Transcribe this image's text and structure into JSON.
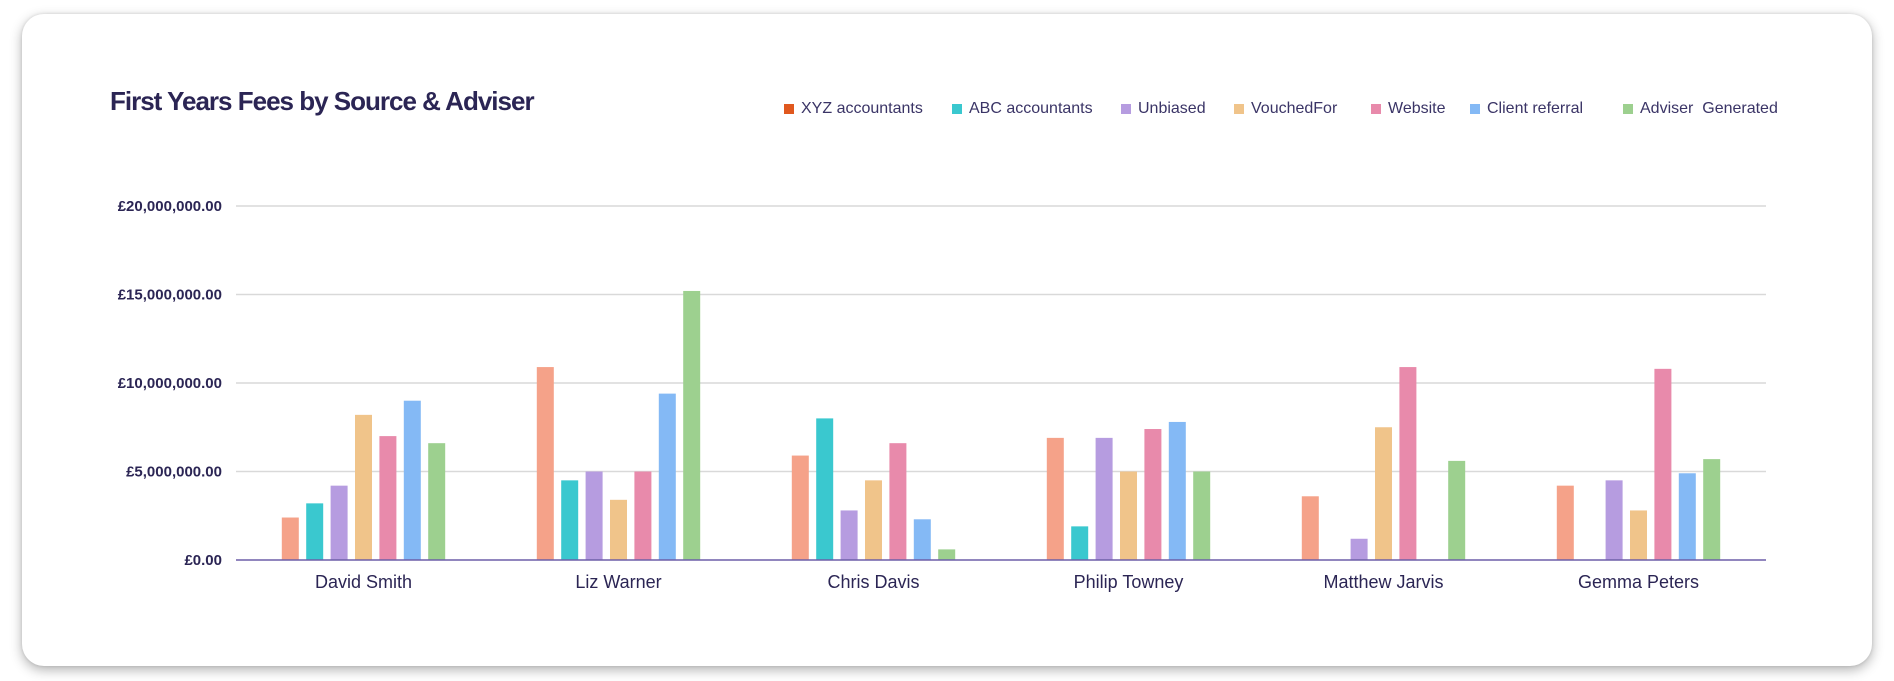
{
  "chart_data": {
    "type": "bar",
    "title": "First Years Fees by Source & Adviser",
    "xlabel": "",
    "ylabel": "",
    "ylim": [
      0,
      20000000
    ],
    "grid": true,
    "legend_position": "top-right",
    "y_ticks": [
      {
        "value": 0,
        "label": "£0.00"
      },
      {
        "value": 5000000,
        "label": "£5,000,000.00"
      },
      {
        "value": 10000000,
        "label": "£10,000,000.00"
      },
      {
        "value": 15000000,
        "label": "£15,000,000.00"
      },
      {
        "value": 20000000,
        "label": "£20,000,000.00"
      }
    ],
    "categories": [
      "David Smith",
      "Liz Warner",
      "Chris Davis",
      "Philip Towney",
      "Matthew Jarvis",
      "Gemma Peters"
    ],
    "legend": [
      {
        "name": "XYZ accountants",
        "color": "#e0581e"
      },
      {
        "name": "ABC accountants",
        "color": "#3ac8cf"
      },
      {
        "name": "Unbiased",
        "color": "#b69ce0"
      },
      {
        "name": "VouchedFor",
        "color": "#f0c48a"
      },
      {
        "name": "Website",
        "color": "#e88aab"
      },
      {
        "name": "Client referral",
        "color": "#84b9f5"
      },
      {
        "name": "Adviser  Generated",
        "color": "#9dd08f"
      }
    ],
    "series": [
      {
        "name": "XYZ accountants",
        "color": "#f5a289",
        "values": [
          2400000,
          10900000,
          5900000,
          6900000,
          3600000,
          4200000
        ]
      },
      {
        "name": "ABC accountants",
        "color": "#3ac8cf",
        "values": [
          3200000,
          4500000,
          8000000,
          1900000,
          0,
          0
        ]
      },
      {
        "name": "Unbiased",
        "color": "#b69ce0",
        "values": [
          4200000,
          5000000,
          2800000,
          6900000,
          1200000,
          4500000
        ]
      },
      {
        "name": "VouchedFor",
        "color": "#f0c48a",
        "values": [
          8200000,
          3400000,
          4500000,
          5000000,
          7500000,
          2800000
        ]
      },
      {
        "name": "Website",
        "color": "#e88aab",
        "values": [
          7000000,
          5000000,
          6600000,
          7400000,
          10900000,
          10800000
        ]
      },
      {
        "name": "Client referral",
        "color": "#84b9f5",
        "values": [
          9000000,
          9400000,
          2300000,
          7800000,
          0,
          4900000
        ]
      },
      {
        "name": "Adviser  Generated",
        "color": "#9dd08f",
        "values": [
          6600000,
          15200000,
          600000,
          5000000,
          5600000,
          5700000
        ]
      }
    ]
  }
}
